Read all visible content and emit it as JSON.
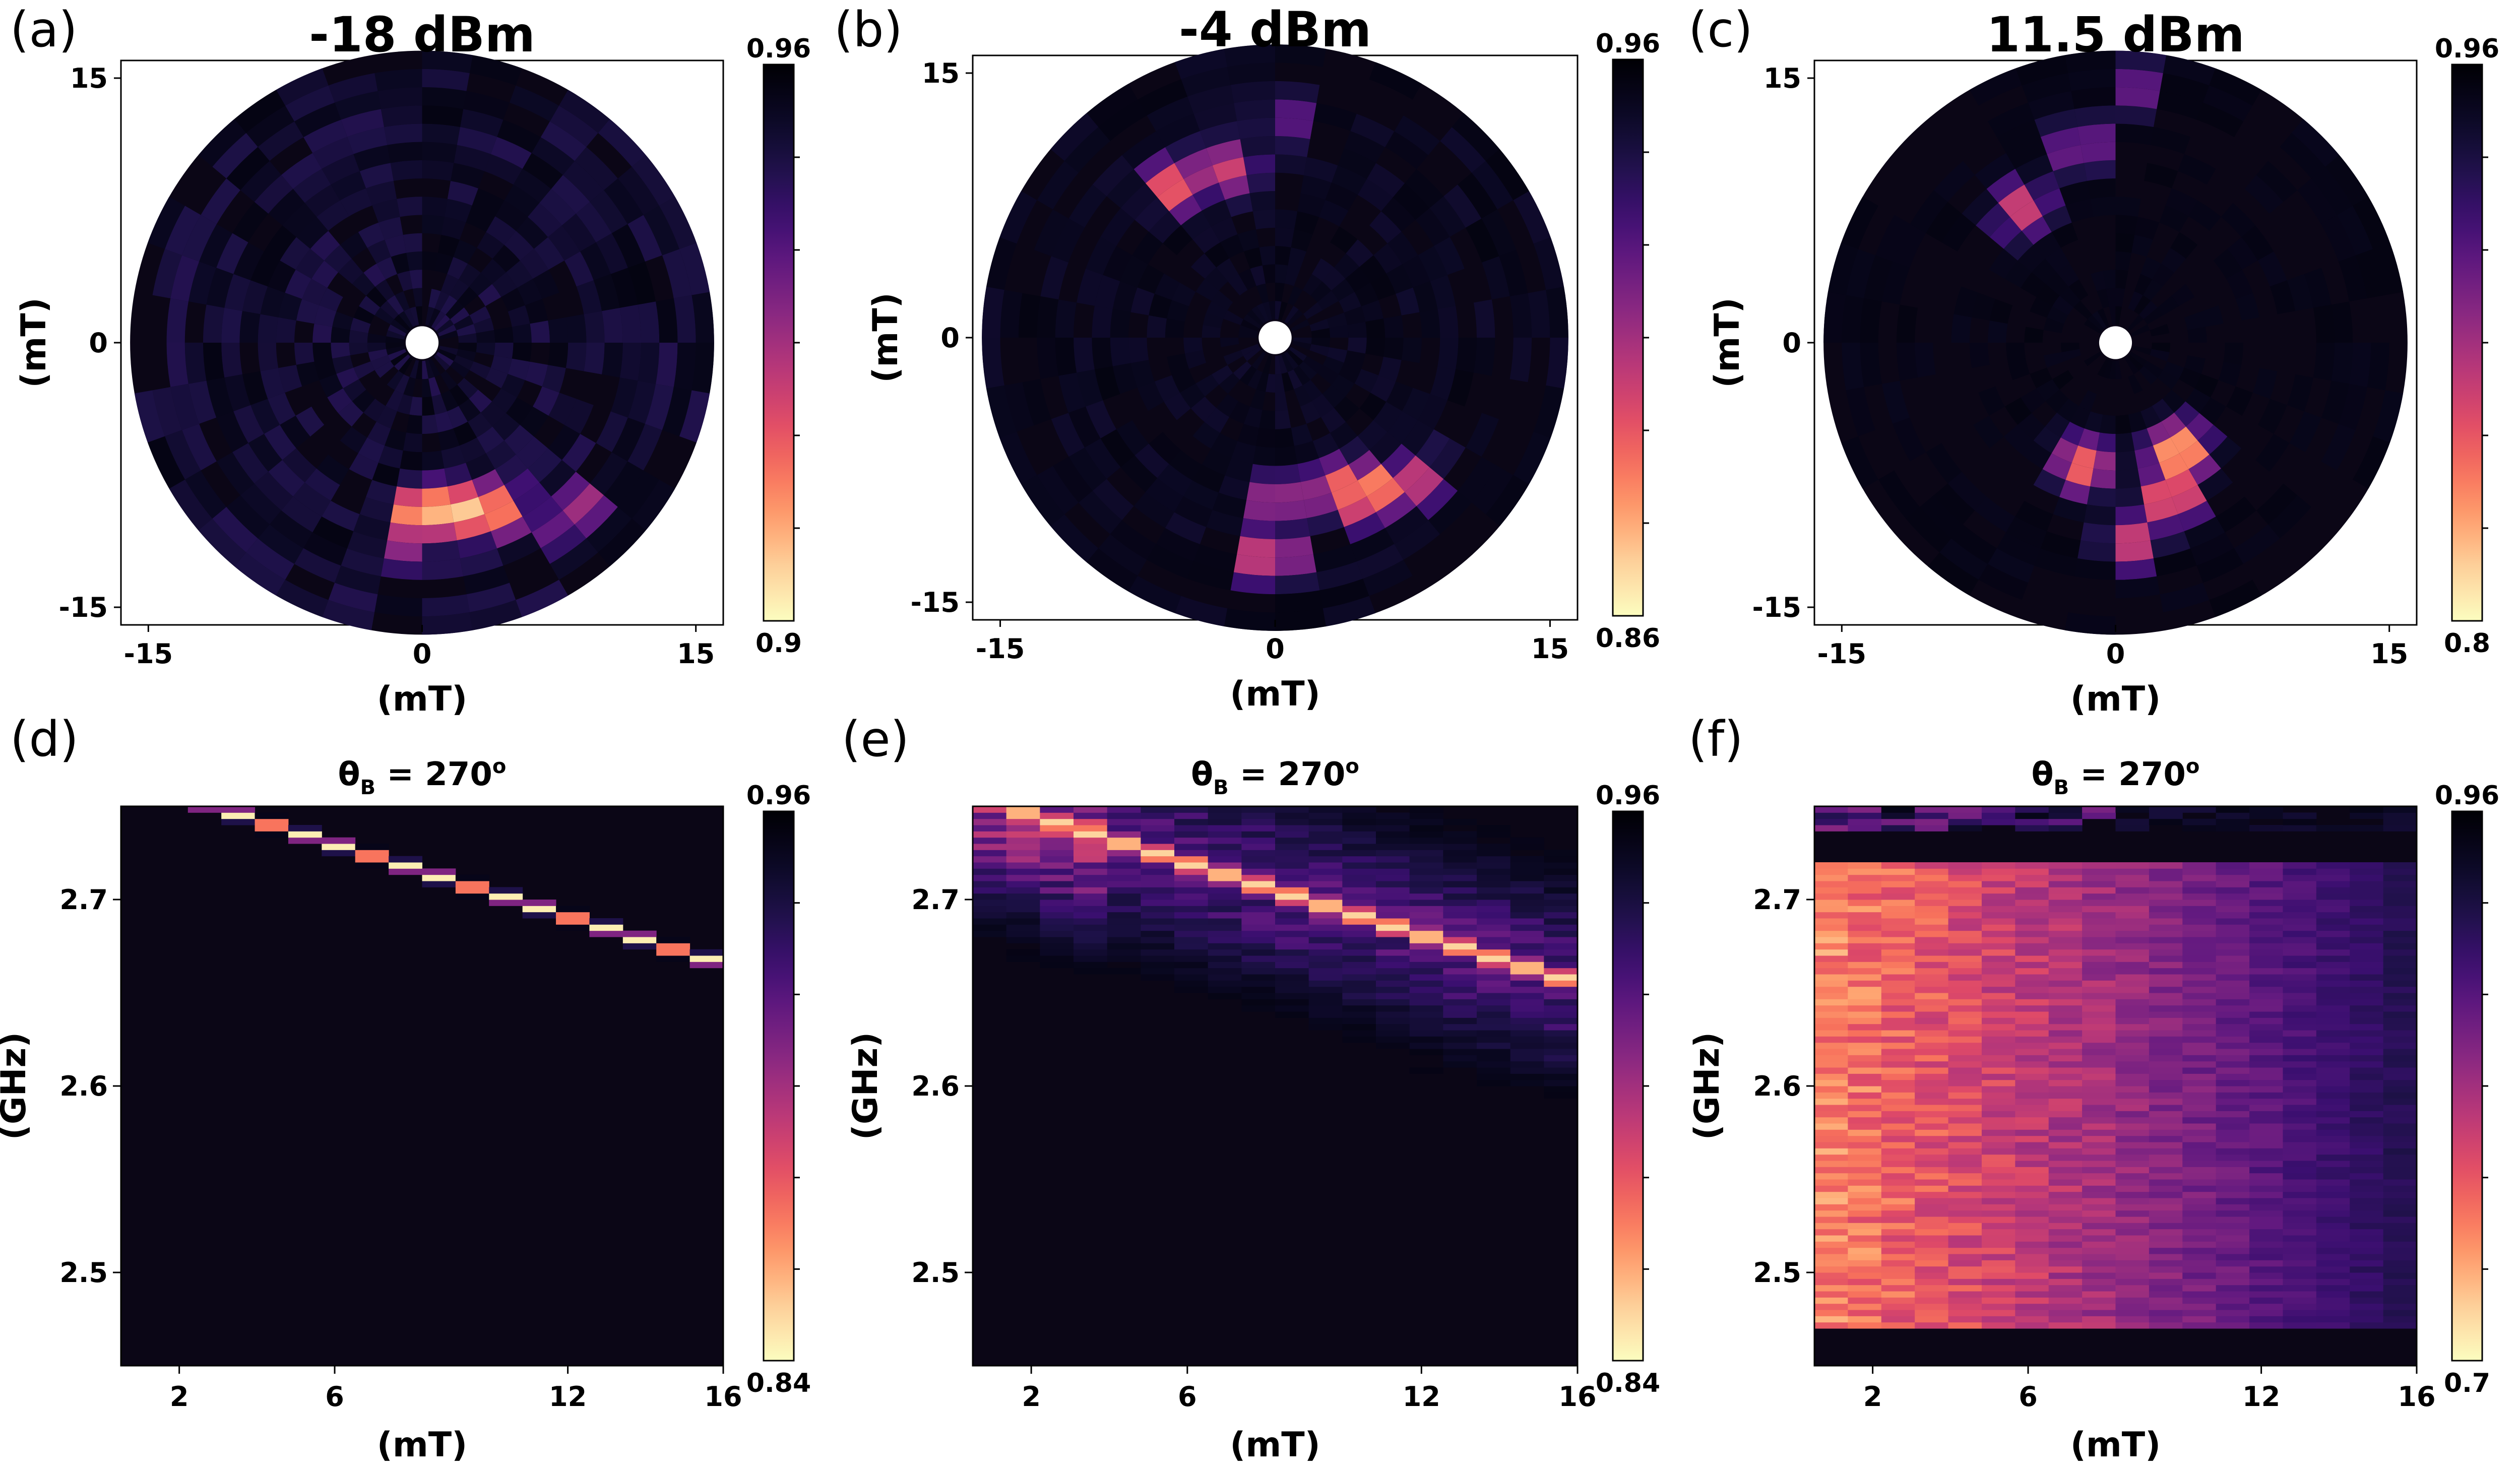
{
  "figure": {
    "panel_letters": [
      "(a)",
      "(b)",
      "(c)",
      "(d)",
      "(e)",
      "(f)"
    ]
  },
  "colormap": [
    "#fcfdbf",
    "#fdd49e",
    "#fea16e",
    "#f7705c",
    "#de4968",
    "#b73779",
    "#8c2981",
    "#641a80",
    "#3b0f70",
    "#1d1147",
    "#0a0822",
    "#000004"
  ],
  "background_color": "#0b0616",
  "chart_data": [
    {
      "id": "a",
      "type": "heatmap",
      "projection": "polar",
      "title": "-18 dBm",
      "xlabel": "(mT)",
      "ylabel": "(mT)",
      "xlim": [
        -16.5,
        16.5
      ],
      "ylim": [
        -16,
        16
      ],
      "xticks": [
        -15,
        0,
        15
      ],
      "xtick_labels": [
        "-15",
        "0",
        "15"
      ],
      "yticks": [
        -15,
        0,
        15
      ],
      "ytick_labels": [
        "-15",
        "0",
        "15"
      ],
      "r_max": 16,
      "colorbar": {
        "min": 0.9,
        "max": 0.96,
        "min_label": "0.9",
        "max_label": "0.96"
      },
      "hotspots": [
        {
          "angle_deg": 270,
          "r": 9.5,
          "value": 0.9
        },
        {
          "angle_deg": 276,
          "r": 9.3,
          "value": 0.905
        },
        {
          "angle_deg": 285,
          "r": 9.5,
          "value": 0.905
        },
        {
          "angle_deg": 295,
          "r": 10.0,
          "value": 0.91
        },
        {
          "angle_deg": 311,
          "r": 12.5,
          "value": 0.92
        },
        {
          "angle_deg": 265,
          "r": 11.0,
          "value": 0.93
        },
        {
          "angle_deg": 110,
          "r": 12.0,
          "value": 0.94
        }
      ]
    },
    {
      "id": "b",
      "type": "heatmap",
      "projection": "polar",
      "title": "-4 dBm",
      "xlabel": "(mT)",
      "ylabel": "(mT)",
      "xlim": [
        -16.5,
        16.5
      ],
      "ylim": [
        -16,
        16
      ],
      "xticks": [
        -15,
        0,
        15
      ],
      "xtick_labels": [
        "-15",
        "0",
        "15"
      ],
      "yticks": [
        -15,
        0,
        15
      ],
      "ytick_labels": [
        "-15",
        "0",
        "15"
      ],
      "r_max": 16,
      "colorbar": {
        "min": 0.86,
        "max": 0.96,
        "min_label": "0.86",
        "max_label": "0.96"
      },
      "hotspots": [
        {
          "angle_deg": 301,
          "r": 10.0,
          "value": 0.865
        },
        {
          "angle_deg": 293,
          "r": 9.0,
          "value": 0.88
        },
        {
          "angle_deg": 315,
          "r": 11.0,
          "value": 0.9
        },
        {
          "angle_deg": 269,
          "r": 12.0,
          "value": 0.885
        },
        {
          "angle_deg": 270,
          "r": 9.0,
          "value": 0.9
        },
        {
          "angle_deg": 122,
          "r": 10.0,
          "value": 0.88
        },
        {
          "angle_deg": 105,
          "r": 9.5,
          "value": 0.9
        },
        {
          "angle_deg": 88,
          "r": 12.0,
          "value": 0.92
        }
      ]
    },
    {
      "id": "c",
      "type": "heatmap",
      "projection": "polar",
      "title": "11.5 dBm",
      "xlabel": "(mT)",
      "ylabel": "(mT)",
      "xlim": [
        -16.5,
        16.5
      ],
      "ylim": [
        -16,
        16
      ],
      "xticks": [
        -15,
        0,
        15
      ],
      "xtick_labels": [
        "-15",
        "0",
        "15"
      ],
      "yticks": [
        -15,
        0,
        15
      ],
      "ytick_labels": [
        "-15",
        "0",
        "15"
      ],
      "r_max": 16,
      "colorbar": {
        "min": 0.8,
        "max": 0.96,
        "min_label": "0.8",
        "max_label": "0.96"
      },
      "hotspots": [
        {
          "angle_deg": 300,
          "r": 7.0,
          "value": 0.81
        },
        {
          "angle_deg": 290,
          "r": 9.0,
          "value": 0.83
        },
        {
          "angle_deg": 255,
          "r": 7.0,
          "value": 0.84
        },
        {
          "angle_deg": 275,
          "r": 11.0,
          "value": 0.86
        },
        {
          "angle_deg": 125,
          "r": 9.0,
          "value": 0.86
        },
        {
          "angle_deg": 100,
          "r": 11.0,
          "value": 0.88
        },
        {
          "angle_deg": 85,
          "r": 14.0,
          "value": 0.9
        }
      ]
    },
    {
      "id": "d",
      "type": "heatmap",
      "projection": "cartesian",
      "title": "θB = 270°",
      "title_main": "θ",
      "title_sub": "B",
      "title_rest": " = 270",
      "xlabel": "(mT)",
      "ylabel": "(GHz)",
      "xlim": [
        0.5,
        16
      ],
      "ylim": [
        2.45,
        2.75
      ],
      "xticks": [
        2,
        6,
        12,
        16
      ],
      "xtick_labels": [
        "2",
        "6",
        "12",
        "16"
      ],
      "yticks": [
        2.5,
        2.6,
        2.7
      ],
      "ytick_labels": [
        "2.5",
        "2.6",
        "2.7"
      ],
      "colorbar": {
        "min": 0.84,
        "max": 0.96,
        "min_label": "0.84",
        "max_label": "0.96"
      },
      "resonance": {
        "f0": 2.765,
        "f1": 2.665,
        "width": 0.003,
        "min_value": 0.84
      }
    },
    {
      "id": "e",
      "type": "heatmap",
      "projection": "cartesian",
      "title": "θB = 270°",
      "title_main": "θ",
      "title_sub": "B",
      "title_rest": " = 270",
      "xlabel": "(mT)",
      "ylabel": "(GHz)",
      "xlim": [
        0.5,
        16
      ],
      "ylim": [
        2.45,
        2.75
      ],
      "xticks": [
        2,
        6,
        12,
        16
      ],
      "xtick_labels": [
        "2",
        "6",
        "12",
        "16"
      ],
      "yticks": [
        2.5,
        2.6,
        2.7
      ],
      "ytick_labels": [
        "2.5",
        "2.6",
        "2.7"
      ],
      "colorbar": {
        "min": 0.84,
        "max": 0.96,
        "min_label": "0.84",
        "max_label": "0.96"
      },
      "resonance": {
        "f0": 2.755,
        "f1": 2.655,
        "width": 0.006,
        "min_value": 0.85
      }
    },
    {
      "id": "f",
      "type": "heatmap",
      "projection": "cartesian",
      "title": "θB = 270°",
      "title_main": "θ",
      "title_sub": "B",
      "title_rest": " = 270",
      "xlabel": "(mT)",
      "ylabel": "(GHz)",
      "xlim": [
        0.5,
        16
      ],
      "ylim": [
        2.45,
        2.75
      ],
      "xticks": [
        2,
        6,
        12,
        16
      ],
      "xtick_labels": [
        "2",
        "6",
        "12",
        "16"
      ],
      "yticks": [
        2.5,
        2.6,
        2.7
      ],
      "ytick_labels": [
        "2.5",
        "2.6",
        "2.7"
      ],
      "colorbar": {
        "min": 0.7,
        "max": 0.96,
        "min_label": "0.7",
        "max_label": "0.96"
      },
      "resonance": {
        "f0": 2.72,
        "f1": 2.47,
        "width": 0.12,
        "min_value": 0.73
      }
    }
  ]
}
